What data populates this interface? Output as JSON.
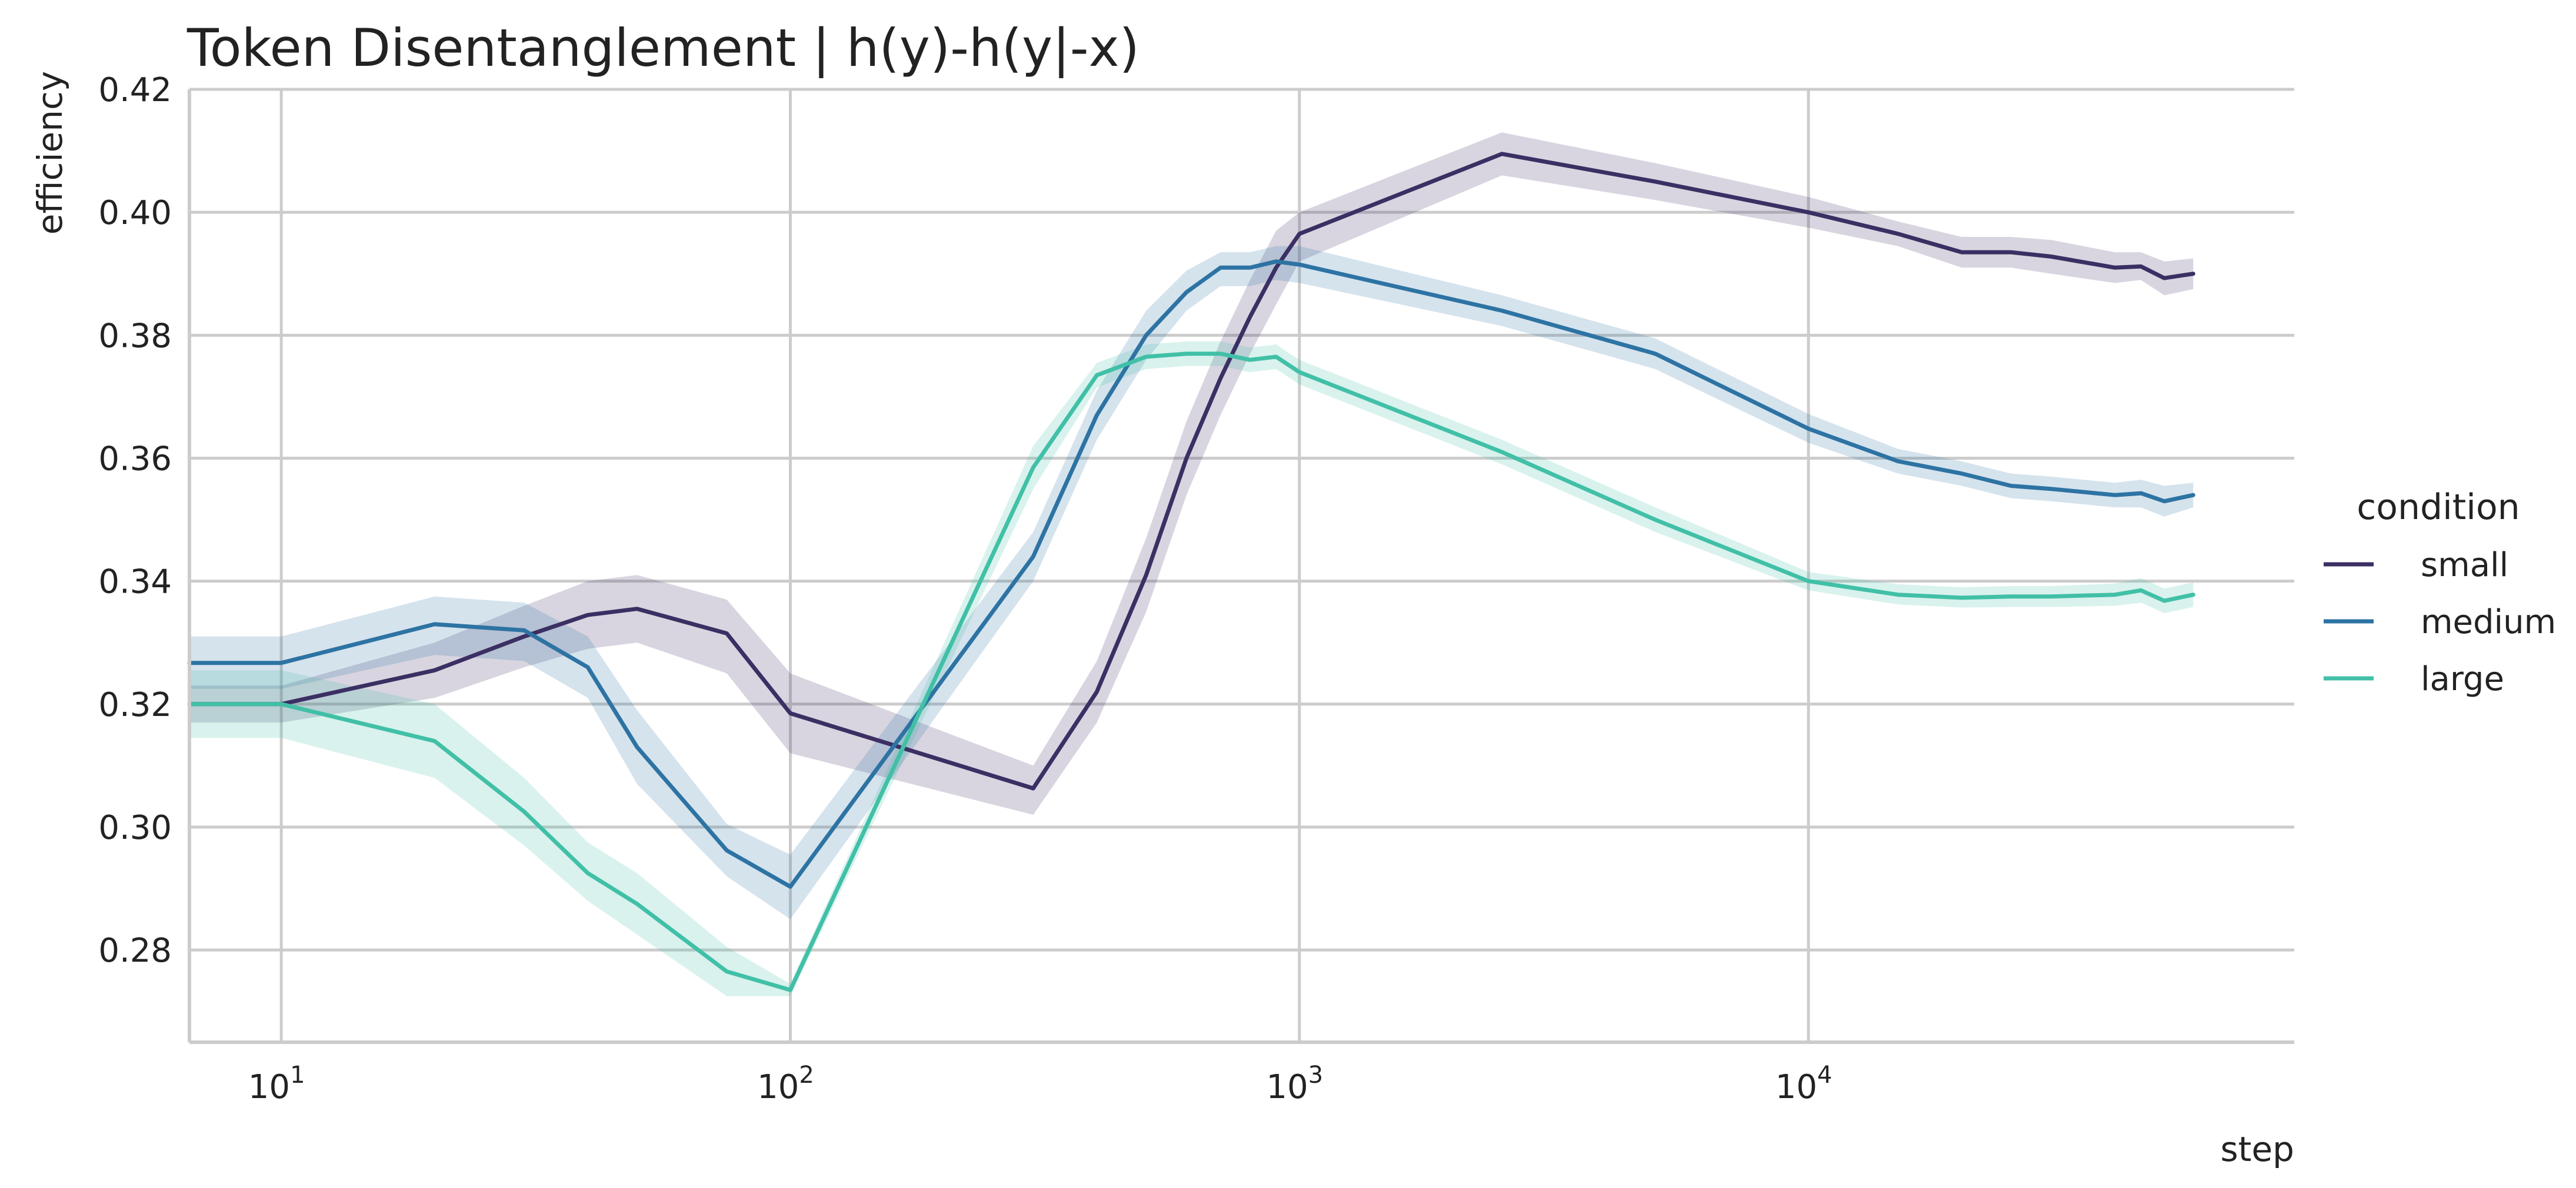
{
  "chart_data": {
    "type": "line",
    "title": "Token Disentanglement | h(y)-h(y|-x)",
    "xlabel": "step",
    "ylabel": "efficiency",
    "xscale": "log",
    "xlim": [
      6.6,
      90000
    ],
    "ylim": [
      0.265,
      0.42
    ],
    "x_ticks": [
      {
        "value": 10,
        "base": "10",
        "exp": "1"
      },
      {
        "value": 100,
        "base": "10",
        "exp": "2"
      },
      {
        "value": 1000,
        "base": "10",
        "exp": "3"
      },
      {
        "value": 10000,
        "base": "10",
        "exp": "4"
      }
    ],
    "y_ticks": [
      {
        "value": 0.28,
        "label": "0.28"
      },
      {
        "value": 0.3,
        "label": "0.30"
      },
      {
        "value": 0.32,
        "label": "0.32"
      },
      {
        "value": 0.34,
        "label": "0.34"
      },
      {
        "value": 0.36,
        "label": "0.36"
      },
      {
        "value": 0.38,
        "label": "0.38"
      },
      {
        "value": 0.4,
        "label": "0.40"
      },
      {
        "value": 0.42,
        "label": "0.42"
      }
    ],
    "grid": true,
    "legend": {
      "title": "condition",
      "position": "right"
    },
    "series": [
      {
        "name": "small",
        "color": "#3b2f63",
        "x": [
          6.6,
          10,
          20,
          30,
          40,
          50,
          75,
          100,
          300,
          400,
          500,
          600,
          700,
          800,
          900,
          1000,
          2500,
          5000,
          10000,
          15000,
          20000,
          25000,
          30000,
          40000,
          45000,
          50000,
          57000
        ],
        "y": [
          0.32,
          0.32,
          0.3255,
          0.331,
          0.3345,
          0.3355,
          0.3315,
          0.3185,
          0.3063,
          0.322,
          0.341,
          0.36,
          0.373,
          0.383,
          0.391,
          0.3965,
          0.4095,
          0.405,
          0.4,
          0.3965,
          0.3935,
          0.3935,
          0.3928,
          0.391,
          0.3912,
          0.3893,
          0.39
        ],
        "lower": [
          0.317,
          0.317,
          0.321,
          0.326,
          0.329,
          0.33,
          0.325,
          0.312,
          0.302,
          0.317,
          0.335,
          0.354,
          0.367,
          0.377,
          0.385,
          0.392,
          0.406,
          0.402,
          0.3975,
          0.3945,
          0.391,
          0.391,
          0.39,
          0.3885,
          0.389,
          0.3865,
          0.3875
        ],
        "upper": [
          0.323,
          0.323,
          0.33,
          0.336,
          0.34,
          0.341,
          0.337,
          0.325,
          0.31,
          0.327,
          0.347,
          0.366,
          0.379,
          0.389,
          0.397,
          0.4,
          0.413,
          0.408,
          0.4025,
          0.3985,
          0.396,
          0.396,
          0.3955,
          0.3935,
          0.3935,
          0.392,
          0.3925
        ]
      },
      {
        "name": "medium",
        "color": "#2d73a3",
        "x": [
          6.6,
          10,
          20,
          30,
          40,
          50,
          75,
          100,
          300,
          400,
          500,
          600,
          700,
          800,
          900,
          1000,
          2500,
          5000,
          10000,
          15000,
          20000,
          25000,
          30000,
          40000,
          45000,
          50000,
          57000
        ],
        "y": [
          0.3267,
          0.3267,
          0.333,
          0.332,
          0.326,
          0.313,
          0.2962,
          0.2903,
          0.344,
          0.367,
          0.38,
          0.387,
          0.391,
          0.391,
          0.392,
          0.3915,
          0.384,
          0.377,
          0.3648,
          0.3595,
          0.3575,
          0.3555,
          0.355,
          0.354,
          0.3543,
          0.353,
          0.354
        ],
        "lower": [
          0.3225,
          0.3225,
          0.328,
          0.327,
          0.321,
          0.307,
          0.292,
          0.285,
          0.34,
          0.363,
          0.376,
          0.384,
          0.388,
          0.388,
          0.389,
          0.3885,
          0.3815,
          0.3745,
          0.3625,
          0.3575,
          0.3555,
          0.3535,
          0.353,
          0.352,
          0.352,
          0.3505,
          0.352
        ],
        "upper": [
          0.331,
          0.331,
          0.3375,
          0.3365,
          0.331,
          0.319,
          0.3005,
          0.2955,
          0.348,
          0.371,
          0.384,
          0.3905,
          0.3935,
          0.3935,
          0.3945,
          0.3945,
          0.3865,
          0.3795,
          0.3672,
          0.3615,
          0.3595,
          0.3575,
          0.357,
          0.356,
          0.3565,
          0.3555,
          0.356
        ]
      },
      {
        "name": "large",
        "color": "#41c0a7",
        "x": [
          6.6,
          10,
          20,
          30,
          40,
          50,
          75,
          100,
          300,
          400,
          500,
          600,
          700,
          800,
          900,
          1000,
          2500,
          5000,
          10000,
          15000,
          20000,
          25000,
          30000,
          40000,
          45000,
          50000,
          57000
        ],
        "y": [
          0.32,
          0.32,
          0.314,
          0.3025,
          0.2925,
          0.2875,
          0.2765,
          0.2735,
          0.3585,
          0.3735,
          0.3765,
          0.377,
          0.377,
          0.376,
          0.3765,
          0.374,
          0.361,
          0.35,
          0.34,
          0.3378,
          0.3373,
          0.3375,
          0.3375,
          0.3378,
          0.3385,
          0.3368,
          0.3378
        ],
        "lower": [
          0.3145,
          0.3145,
          0.308,
          0.297,
          0.288,
          0.2825,
          0.2725,
          0.2725,
          0.355,
          0.3715,
          0.3745,
          0.375,
          0.375,
          0.374,
          0.3745,
          0.372,
          0.359,
          0.348,
          0.3385,
          0.3362,
          0.3357,
          0.3358,
          0.3358,
          0.336,
          0.3365,
          0.3348,
          0.3358
        ],
        "upper": [
          0.3255,
          0.3255,
          0.32,
          0.308,
          0.2975,
          0.2925,
          0.2805,
          0.2745,
          0.362,
          0.3755,
          0.3785,
          0.379,
          0.379,
          0.378,
          0.3785,
          0.376,
          0.363,
          0.352,
          0.3415,
          0.3395,
          0.339,
          0.3392,
          0.3392,
          0.3396,
          0.3405,
          0.3388,
          0.3398
        ]
      }
    ]
  }
}
